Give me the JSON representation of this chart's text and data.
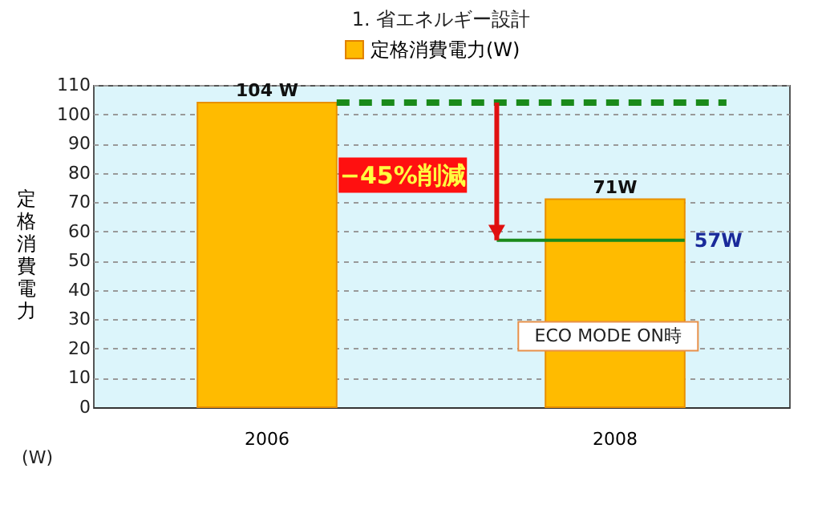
{
  "chart_data": {
    "type": "bar",
    "title": "1. 省エネルギー設計",
    "ylabel": "定格消費電力",
    "categories": [
      "2006",
      "2008"
    ],
    "series": [
      {
        "name": "定格消費電力(W)",
        "color": "#ffbb00",
        "values": [
          104,
          71
        ],
        "value_labels": [
          "104 W",
          "71W"
        ]
      }
    ],
    "ylim": [
      0,
      110
    ],
    "yticks": [
      0,
      10,
      20,
      30,
      40,
      50,
      60,
      70,
      80,
      90,
      100,
      110
    ],
    "grid": "y",
    "legend": "top",
    "ref_lines": [
      {
        "axis": "y",
        "value": 104,
        "color": "#1a8a1a",
        "line_style": "dashed"
      },
      {
        "axis": "y",
        "value": 57,
        "label": "57W",
        "color": "#1a8a1a",
        "line_style": "solid"
      }
    ],
    "annotations": [
      "−45%削減",
      "ECO MODE ON時",
      "(W)"
    ]
  }
}
